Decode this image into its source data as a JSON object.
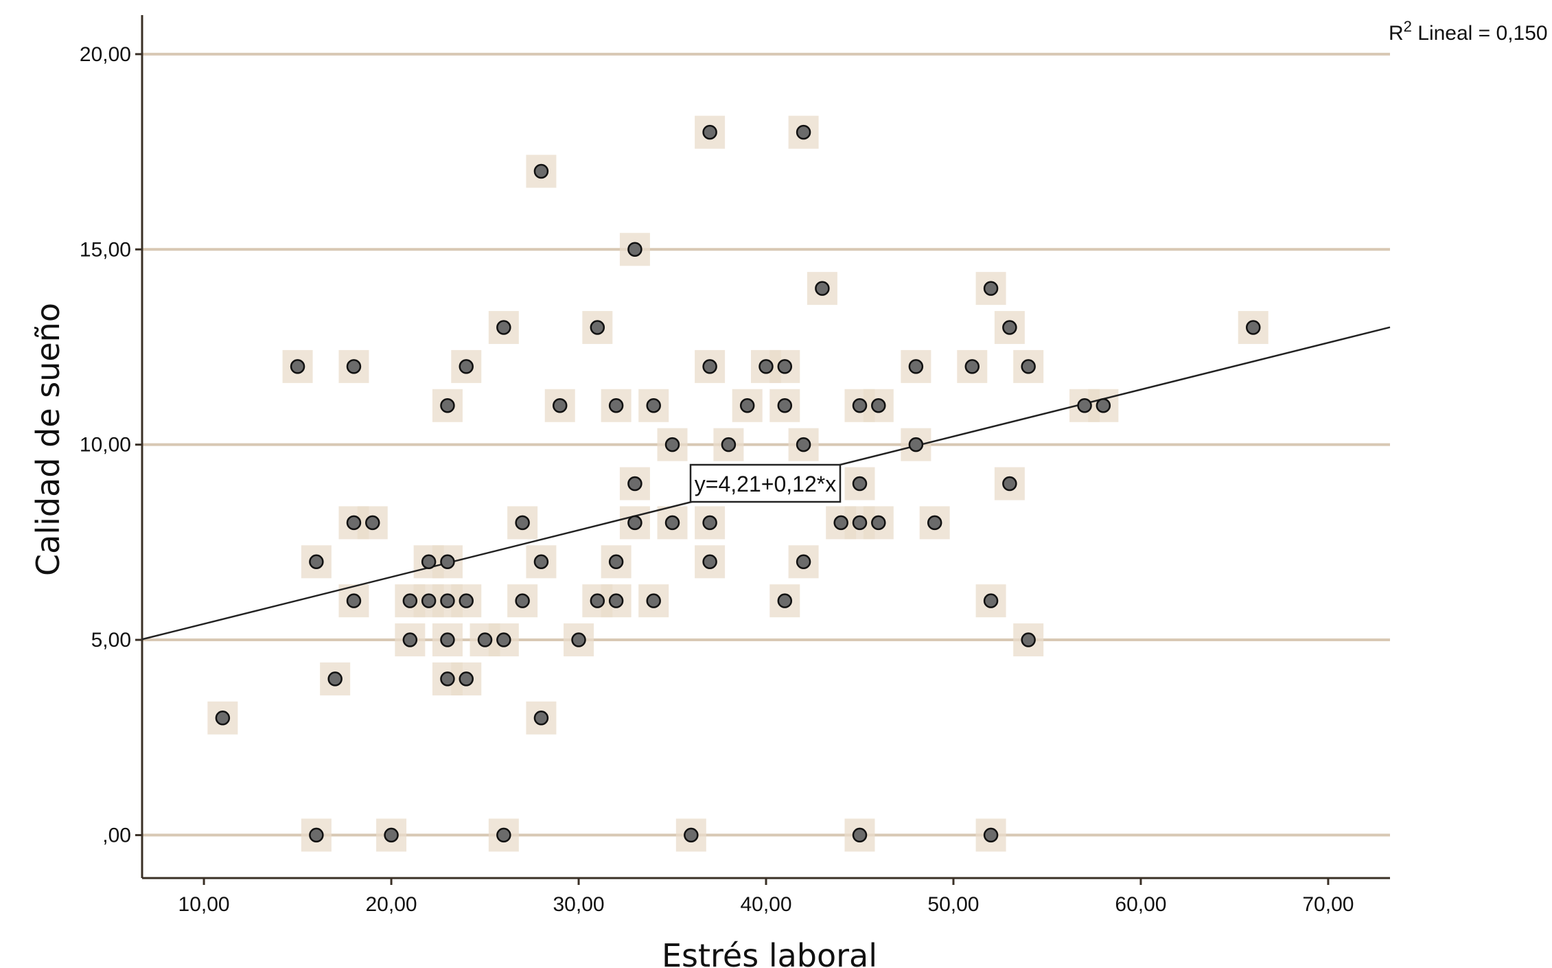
{
  "chart_data": {
    "type": "scatter",
    "title": "",
    "xlabel": "Estrés laboral",
    "ylabel": "Calidad de sueño",
    "xlim": [
      6.7,
      73.3
    ],
    "ylim": [
      -1.1,
      21.0
    ],
    "x_ticks": [
      10,
      20,
      30,
      40,
      50,
      60,
      70
    ],
    "x_tick_labels": [
      "10,00",
      "20,00",
      "30,00",
      "40,00",
      "50,00",
      "60,00",
      "70,00"
    ],
    "y_ticks": [
      0,
      5,
      10,
      15,
      20
    ],
    "y_tick_labels": [
      ",00",
      "5,00",
      "10,00",
      "15,00",
      "20,00"
    ],
    "gridlines": "horizontal",
    "fit_line": {
      "intercept": 4.21,
      "slope": 0.12
    },
    "fit_equation": "y=4,21+0,12*x",
    "r2_prefix": "R",
    "r2_sup": "2",
    "r2_text": " Lineal = 0,150",
    "colors": {
      "grid": "#d8c8b4",
      "marker_fill": "#6b6b6b",
      "marker_halo": "#e9dccb",
      "line": "#222222"
    },
    "points": [
      [
        11,
        3
      ],
      [
        15,
        12
      ],
      [
        16,
        7
      ],
      [
        16,
        0
      ],
      [
        17,
        4
      ],
      [
        18,
        12
      ],
      [
        18,
        8
      ],
      [
        18,
        6
      ],
      [
        19,
        8
      ],
      [
        20,
        0
      ],
      [
        21,
        6
      ],
      [
        21,
        5
      ],
      [
        22,
        7
      ],
      [
        22,
        6
      ],
      [
        23,
        11
      ],
      [
        23,
        7
      ],
      [
        23,
        6
      ],
      [
        23,
        5
      ],
      [
        23,
        4
      ],
      [
        24,
        12
      ],
      [
        24,
        6
      ],
      [
        24,
        4
      ],
      [
        25,
        5
      ],
      [
        26,
        13
      ],
      [
        26,
        5
      ],
      [
        26,
        0
      ],
      [
        27,
        8
      ],
      [
        27,
        6
      ],
      [
        28,
        17
      ],
      [
        28,
        7
      ],
      [
        28,
        3
      ],
      [
        29,
        11
      ],
      [
        30,
        5
      ],
      [
        31,
        13
      ],
      [
        31,
        6
      ],
      [
        32,
        11
      ],
      [
        32,
        7
      ],
      [
        32,
        6
      ],
      [
        33,
        15
      ],
      [
        33,
        9
      ],
      [
        33,
        8
      ],
      [
        34,
        11
      ],
      [
        34,
        6
      ],
      [
        35,
        10
      ],
      [
        35,
        8
      ],
      [
        36,
        0
      ],
      [
        37,
        18
      ],
      [
        37,
        12
      ],
      [
        37,
        8
      ],
      [
        37,
        7
      ],
      [
        38,
        10
      ],
      [
        39,
        11
      ],
      [
        40,
        12
      ],
      [
        41,
        12
      ],
      [
        41,
        11
      ],
      [
        41,
        6
      ],
      [
        42,
        18
      ],
      [
        42,
        10
      ],
      [
        42,
        7
      ],
      [
        43,
        14
      ],
      [
        44,
        8
      ],
      [
        45,
        11
      ],
      [
        45,
        9
      ],
      [
        45,
        8
      ],
      [
        45,
        0
      ],
      [
        46,
        11
      ],
      [
        46,
        8
      ],
      [
        48,
        12
      ],
      [
        48,
        10
      ],
      [
        49,
        8
      ],
      [
        51,
        12
      ],
      [
        52,
        14
      ],
      [
        52,
        6
      ],
      [
        52,
        0
      ],
      [
        53,
        13
      ],
      [
        53,
        9
      ],
      [
        54,
        12
      ],
      [
        54,
        5
      ],
      [
        57,
        11
      ],
      [
        58,
        11
      ],
      [
        66,
        13
      ]
    ]
  }
}
